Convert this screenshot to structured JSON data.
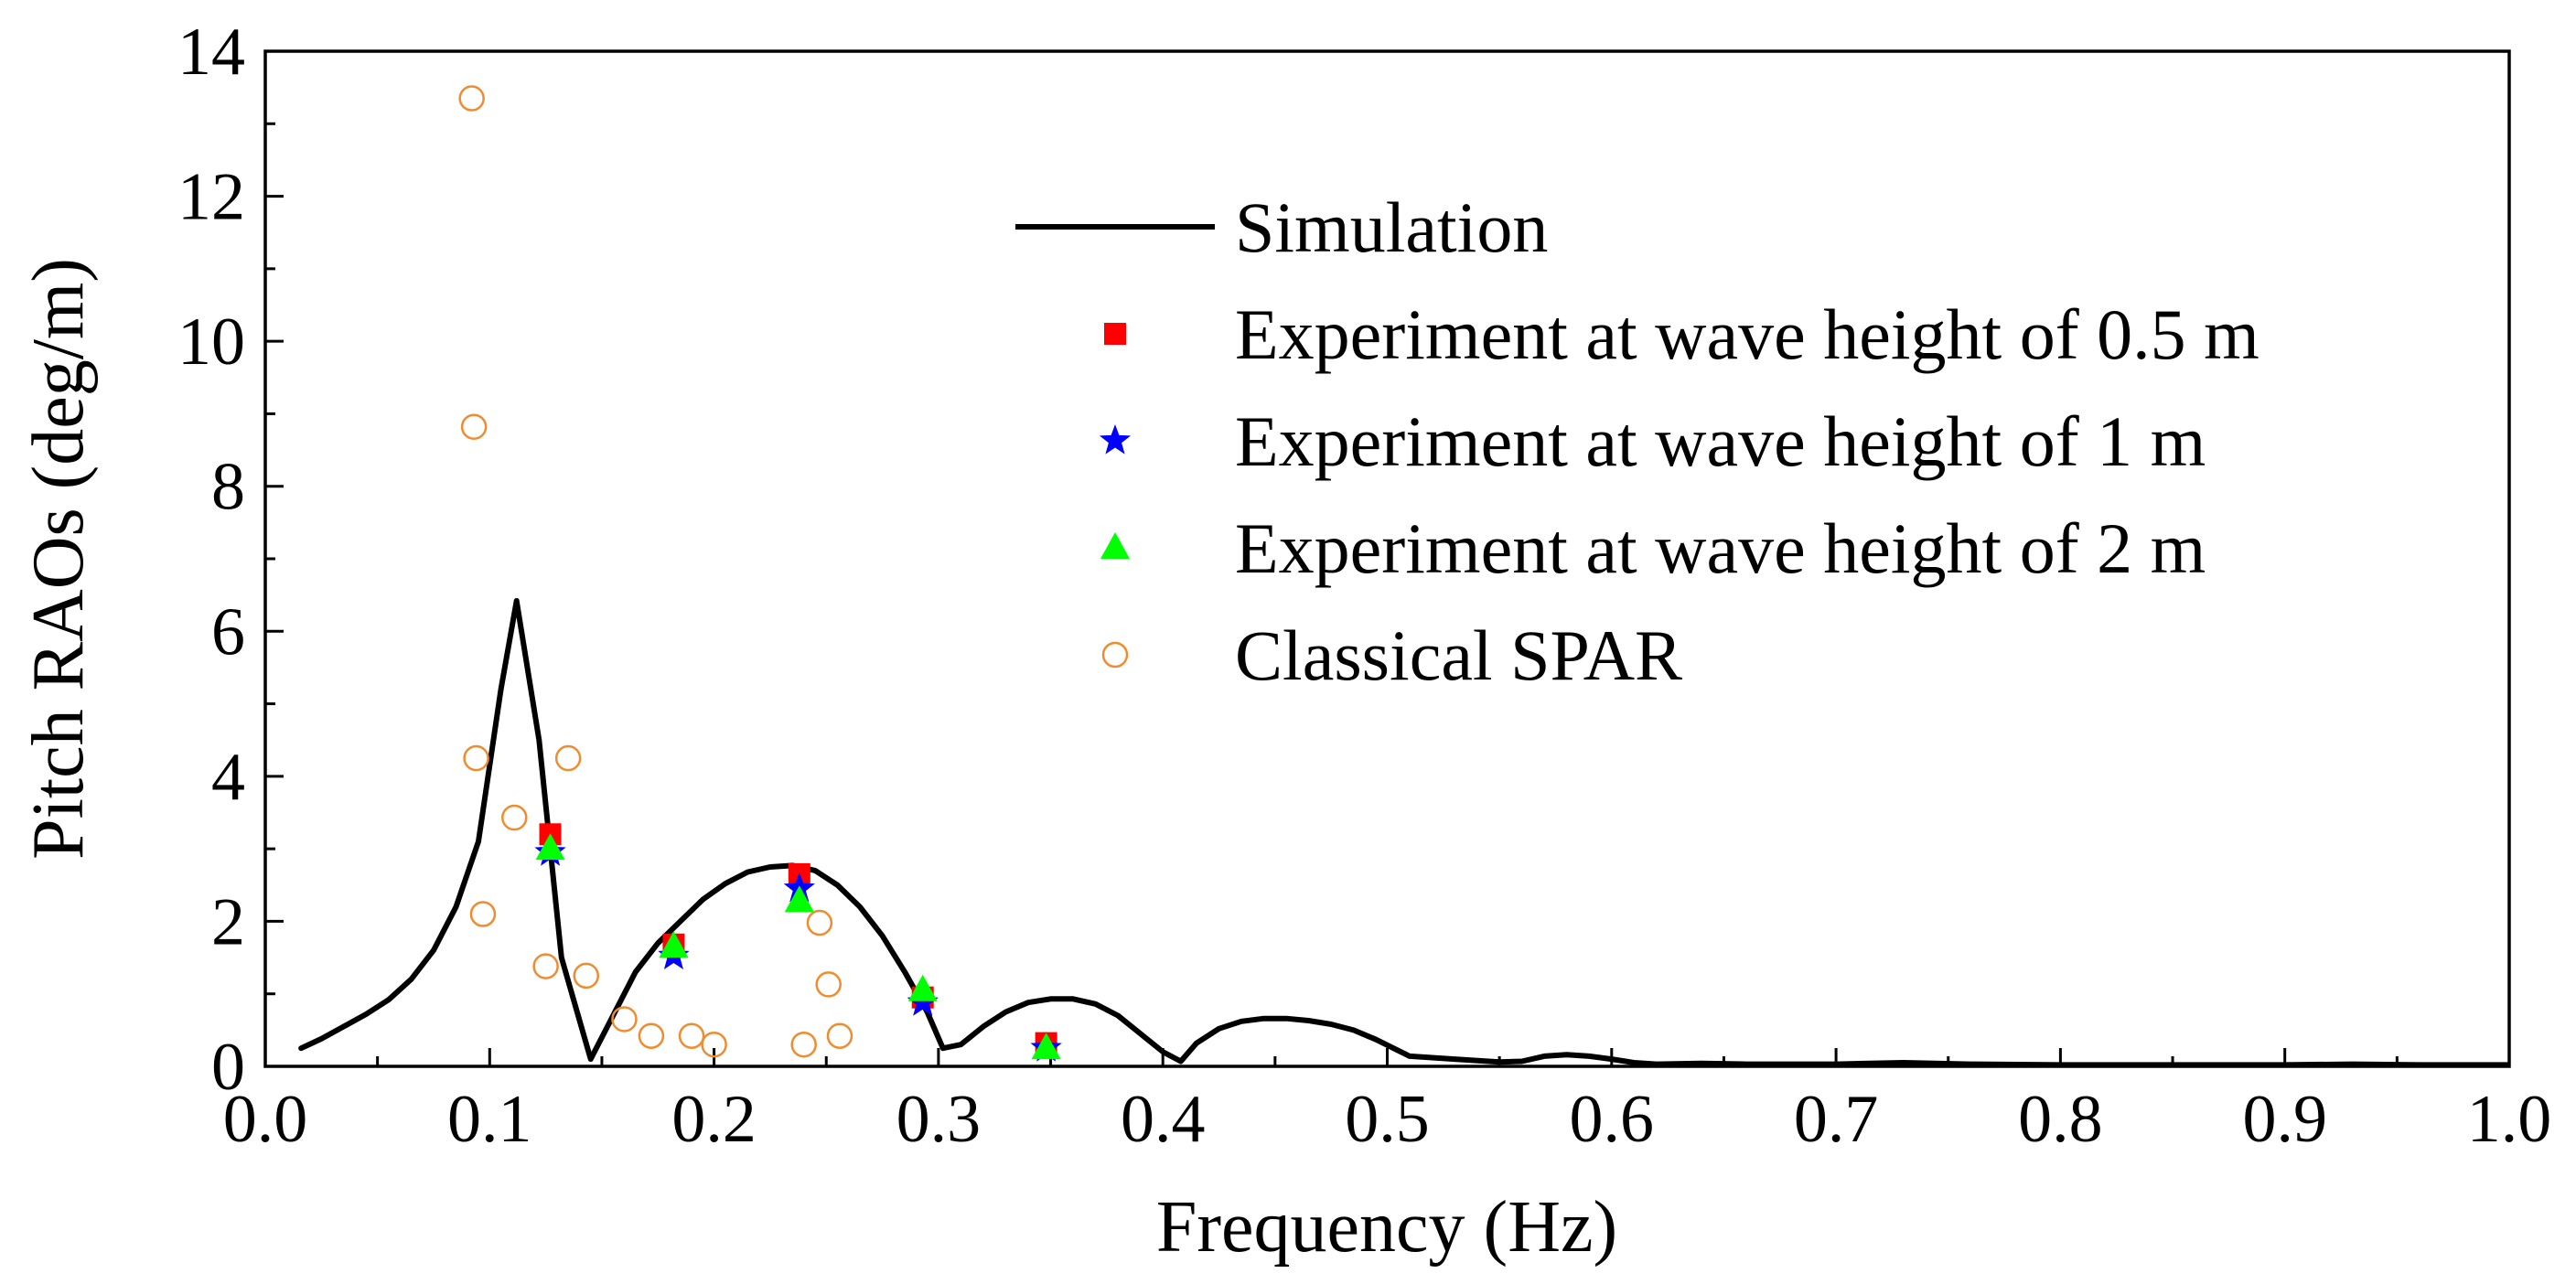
{
  "chart_data": {
    "type": "line+scatter",
    "xlabel": "Frequency (Hz)",
    "ylabel": "Pitch RAOs (deg/m)",
    "xlim": [
      0.0,
      1.0
    ],
    "ylim": [
      0,
      14
    ],
    "xticks": [
      "0.0",
      "0.1",
      "0.2",
      "0.3",
      "0.4",
      "0.5",
      "0.6",
      "0.7",
      "0.8",
      "0.9",
      "1.0"
    ],
    "yticks": [
      "0",
      "2",
      "4",
      "6",
      "8",
      "10",
      "12",
      "14"
    ],
    "grid": false,
    "legend_position": "top-right",
    "colors": {
      "simulation": "#000000",
      "exp_05": "#ff0000",
      "exp_1": "#0000ff",
      "exp_2": "#00ff00",
      "classical": "#f08c30"
    },
    "series": [
      {
        "name": "Simulation",
        "key": "simulation",
        "style": "line",
        "x": [
          0.016,
          0.025,
          0.035,
          0.045,
          0.055,
          0.065,
          0.075,
          0.085,
          0.095,
          0.105,
          0.112,
          0.122,
          0.132,
          0.145,
          0.155,
          0.165,
          0.175,
          0.185,
          0.195,
          0.205,
          0.215,
          0.225,
          0.235,
          0.245,
          0.255,
          0.265,
          0.275,
          0.285,
          0.295,
          0.302,
          0.31,
          0.32,
          0.33,
          0.34,
          0.35,
          0.36,
          0.37,
          0.38,
          0.39,
          0.4,
          0.408,
          0.415,
          0.425,
          0.435,
          0.445,
          0.455,
          0.465,
          0.475,
          0.485,
          0.495,
          0.51,
          0.53,
          0.55,
          0.56,
          0.57,
          0.58,
          0.59,
          0.6,
          0.61,
          0.62,
          0.64,
          0.66,
          0.7,
          0.73,
          0.76,
          0.8,
          0.85,
          0.9,
          0.93,
          0.96,
          1.0
        ],
        "values": [
          0.25,
          0.38,
          0.55,
          0.72,
          0.92,
          1.2,
          1.6,
          2.2,
          3.1,
          5.2,
          6.42,
          4.5,
          1.5,
          0.1,
          0.7,
          1.3,
          1.7,
          2.0,
          2.3,
          2.52,
          2.68,
          2.75,
          2.77,
          2.7,
          2.5,
          2.2,
          1.8,
          1.3,
          0.75,
          0.25,
          0.3,
          0.55,
          0.75,
          0.88,
          0.93,
          0.93,
          0.86,
          0.7,
          0.45,
          0.2,
          0.07,
          0.32,
          0.52,
          0.62,
          0.66,
          0.66,
          0.63,
          0.58,
          0.5,
          0.37,
          0.14,
          0.1,
          0.06,
          0.07,
          0.14,
          0.16,
          0.14,
          0.1,
          0.05,
          0.03,
          0.04,
          0.03,
          0.03,
          0.05,
          0.03,
          0.02,
          0.02,
          0.02,
          0.03,
          0.02,
          0.02
        ]
      },
      {
        "name": "Experiment at wave height of 0.5 m",
        "key": "exp_05",
        "style": "square",
        "x": [
          0.127,
          0.182,
          0.238,
          0.293,
          0.348
        ],
        "values": [
          3.2,
          1.68,
          2.65,
          0.95,
          0.32
        ]
      },
      {
        "name": "Experiment at wave height of 1 m",
        "key": "exp_1",
        "style": "star",
        "x": [
          0.127,
          0.182,
          0.238,
          0.293,
          0.348
        ],
        "values": [
          2.95,
          1.52,
          2.45,
          0.88,
          0.25
        ]
      },
      {
        "name": "Experiment at wave height of 2 m",
        "key": "exp_2",
        "style": "triangle",
        "x": [
          0.127,
          0.182,
          0.238,
          0.293,
          0.348
        ],
        "values": [
          3.0,
          1.65,
          2.28,
          1.05,
          0.25
        ]
      },
      {
        "name": "Classical SPAR",
        "key": "classical",
        "style": "circle",
        "x": [
          0.092,
          0.093,
          0.094,
          0.097,
          0.111,
          0.125,
          0.135,
          0.143,
          0.16,
          0.172,
          0.19,
          0.2,
          0.24,
          0.247,
          0.251,
          0.256
        ],
        "values": [
          13.35,
          8.82,
          4.25,
          2.1,
          3.43,
          1.38,
          4.25,
          1.25,
          0.65,
          0.42,
          0.42,
          0.3,
          0.3,
          1.98,
          1.13,
          0.42
        ]
      }
    ]
  }
}
